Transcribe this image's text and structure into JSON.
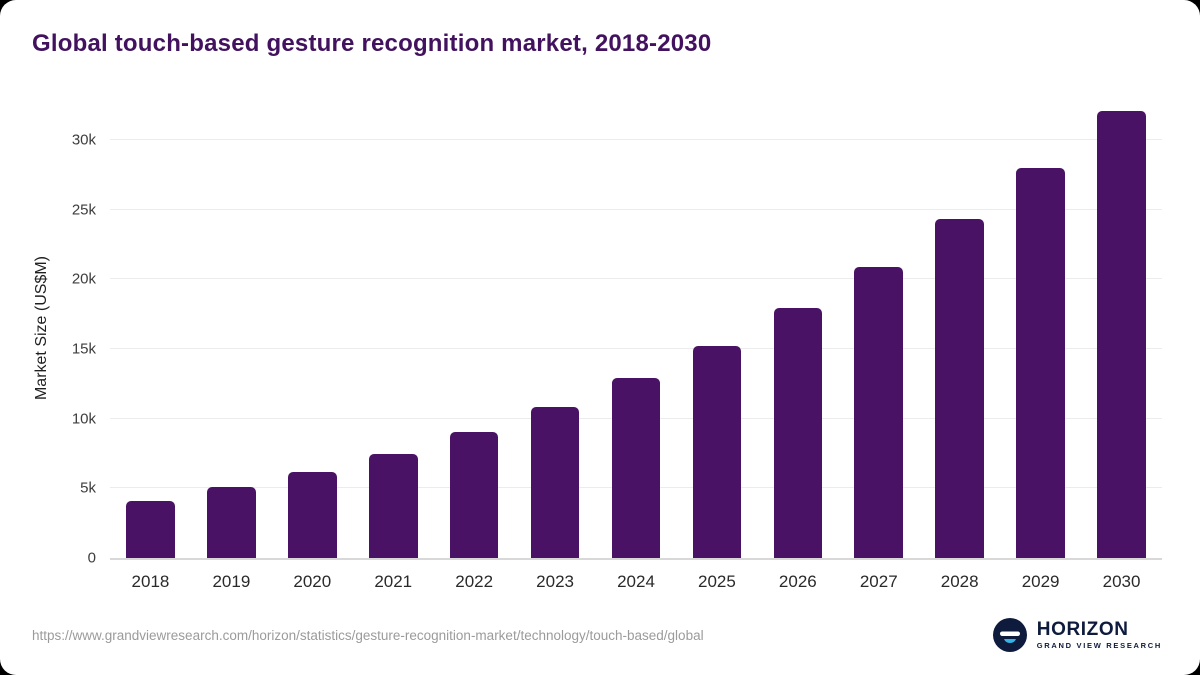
{
  "page": {
    "title": "Global touch-based gesture recognition market, 2018-2030",
    "source_url": "https://www.grandviewresearch.com/horizon/statistics/gesture-recognition-market/technology/touch-based/global",
    "brand": {
      "name": "HORIZON",
      "subtitle": "GRAND VIEW RESEARCH"
    }
  },
  "colors": {
    "title": "#42125f",
    "bar": "#4a1264",
    "logo_navy": "#0e1b3d",
    "logo_cyan": "#35b4e5",
    "gridline": "#ececec",
    "source_text": "#9b9b9b"
  },
  "chart_data": {
    "type": "bar",
    "title": "Global touch-based gesture recognition market, 2018-2030",
    "categories": [
      "2018",
      "2019",
      "2020",
      "2021",
      "2022",
      "2023",
      "2024",
      "2025",
      "2026",
      "2027",
      "2028",
      "2029",
      "2030"
    ],
    "values": [
      4100,
      5100,
      6150,
      7450,
      9050,
      10850,
      12900,
      15200,
      17950,
      20900,
      24300,
      28000,
      32100
    ],
    "xlabel": "",
    "ylabel": "Market Size (US$M)",
    "ylim": [
      0,
      33000
    ],
    "yticks": [
      0,
      5000,
      10000,
      15000,
      20000,
      25000,
      30000
    ],
    "ytick_labels": [
      "0",
      "5k",
      "10k",
      "15k",
      "20k",
      "25k",
      "30k"
    ],
    "bar_color": "#4a1264",
    "grid": true,
    "legend": false,
    "units": "US$M"
  }
}
